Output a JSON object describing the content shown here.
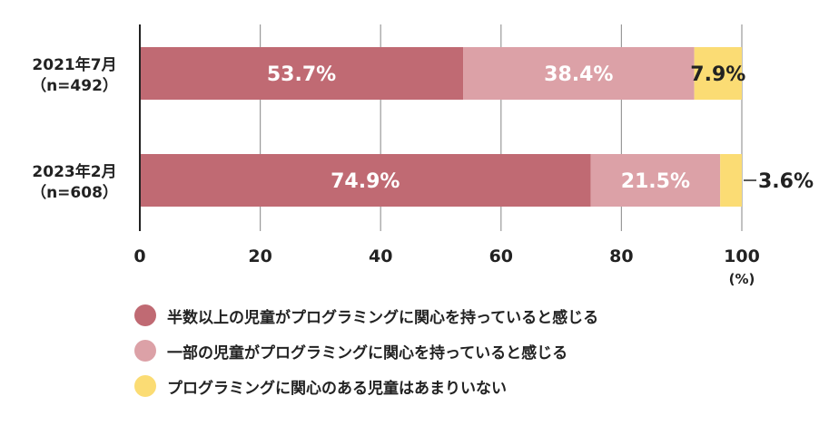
{
  "chart_data": {
    "type": "bar",
    "orientation": "horizontal",
    "stacked": true,
    "categories": [
      {
        "line1": "2021年7月",
        "line2": "（n=492）"
      },
      {
        "line1": "2023年2月",
        "line2": "（n=608）"
      }
    ],
    "series": [
      {
        "name": "半数以上の児童がプログラミングに関心を持っていると感じる",
        "color": "#c06a73",
        "values": [
          53.7,
          74.9
        ],
        "labels": [
          "53.7%",
          "74.9%"
        ]
      },
      {
        "name": "一部の児童がプログラミングに関心を持っていると感じる",
        "color": "#dca1a7",
        "values": [
          38.4,
          21.5
        ],
        "labels": [
          "38.4%",
          "21.5%"
        ]
      },
      {
        "name": "プログラミングに関心のある児童はあまりいない",
        "color": "#fbdc74",
        "values": [
          7.9,
          3.6
        ],
        "labels": [
          "7.9%",
          "3.6%"
        ]
      }
    ],
    "x_ticks": [
      "0",
      "20",
      "40",
      "60",
      "80",
      "100"
    ],
    "x_unit": "(%)",
    "xlim": [
      0,
      100
    ],
    "grid": true,
    "legend_position": "bottom"
  }
}
